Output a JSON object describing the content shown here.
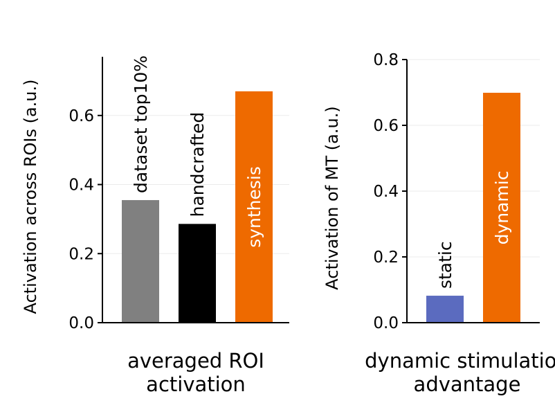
{
  "chart_data": [
    {
      "type": "bar",
      "ylabel": "Activation across ROIs (a.u.)",
      "xlabel": "averaged ROI\nactivation",
      "categories": [
        "dataset top10%",
        "handcrafted",
        "synthesis"
      ],
      "values": [
        0.355,
        0.286,
        0.67
      ],
      "colors": [
        "#808080",
        "#000000",
        "#ee6a00"
      ],
      "ylim": [
        0,
        0.77
      ],
      "yticks": [
        {
          "value": 0,
          "label": "0.0"
        },
        0.2,
        0.4,
        0.6
      ],
      "grid": true
    },
    {
      "type": "bar",
      "ylabel": "Activation of MT (a.u.)",
      "xlabel": "dynamic stimulation\nadvantage",
      "categories": [
        "static",
        "dynamic"
      ],
      "values": [
        0.082,
        0.699
      ],
      "colors": [
        "#5b6bbf",
        "#ee6a00"
      ],
      "ylim": [
        0,
        0.8
      ],
      "yticks": [
        {
          "value": 0,
          "label": "0.0"
        },
        0.2,
        0.4,
        0.6,
        0.8
      ],
      "grid": true
    }
  ]
}
